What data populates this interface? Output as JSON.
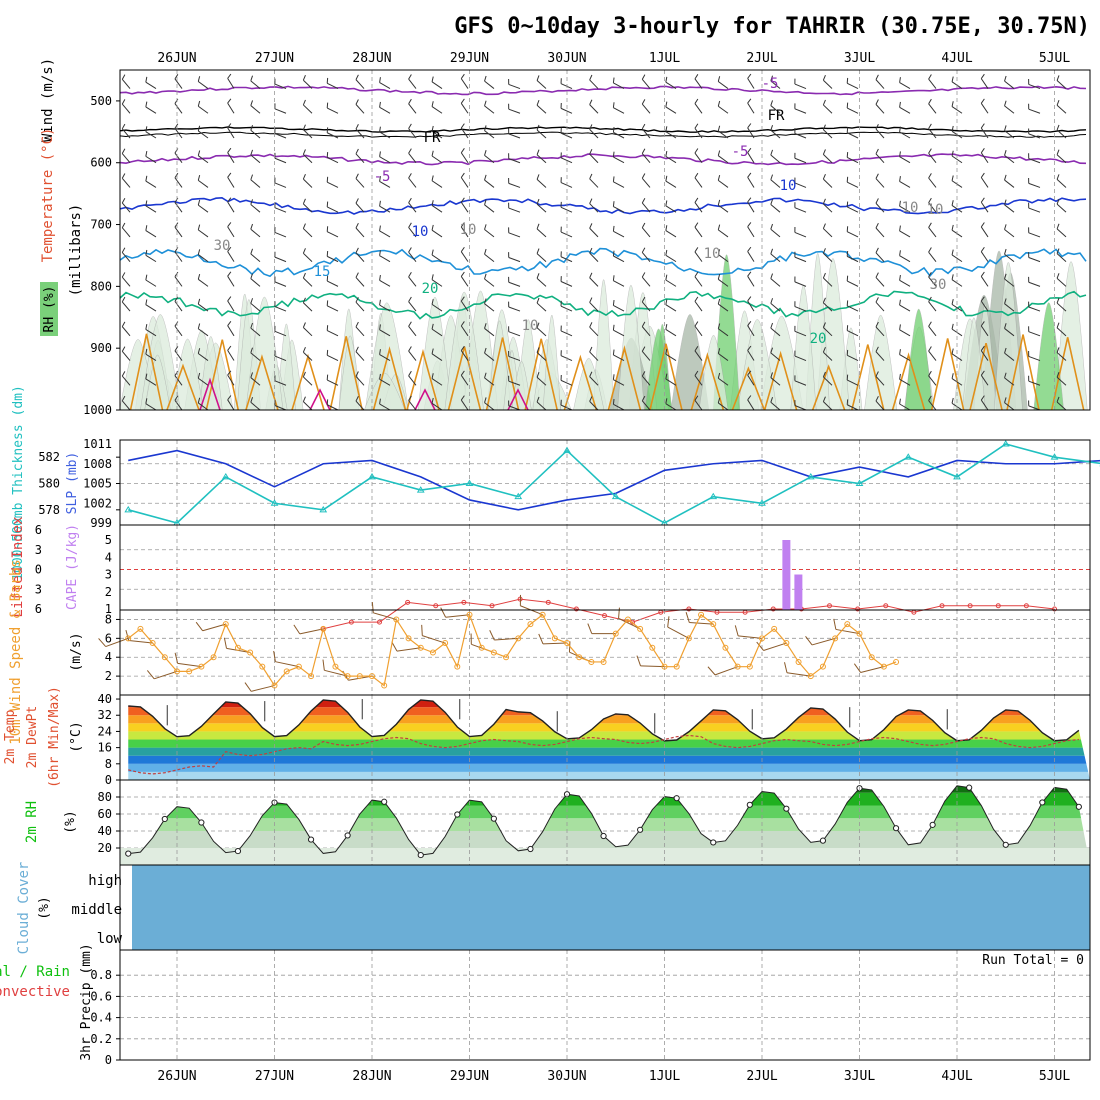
{
  "title": "GFS 0~10day 3-hourly for TAHRIR (30.75E, 30.75N)",
  "date_labels": [
    "26JUN",
    "27JUN",
    "28JUN",
    "29JUN",
    "30JUN",
    "1JUL",
    "2JUL",
    "3JUL",
    "4JUL",
    "5JUL"
  ],
  "upper_panel": {
    "label_wind": "Wind (m/s)",
    "label_temperature": "Temperature (°C)",
    "label_rh": "RH (%)",
    "label_pressure": "(millibars)",
    "pressure_ticks": [
      500,
      600,
      700,
      800,
      900,
      1000
    ],
    "contour_labels": [
      "-5",
      "FR",
      "FR",
      "-5",
      "-5",
      "10",
      "10",
      "15",
      "20",
      "20",
      "30",
      "30",
      "10",
      "10",
      "10",
      "10",
      "10"
    ]
  },
  "panel_labels": {
    "thickness": "1000~500mb Thickness (dm)",
    "slp": "SLP (mb)",
    "lifted_index": "Lifted Index",
    "cape": "CAPE (J/kg)",
    "wind10m": "10m Wind Speed & Barbs",
    "wind10m_unit": "(m/s)",
    "temp2m_a": "2m Temp",
    "temp2m_b": "2m DewPt",
    "temp2m_c": "(6hr Min/Max)",
    "temp2m_unit": "(°C)",
    "rh2m": "2m RH",
    "rh2m_unit": "(%)",
    "cloud": "Cloud Cover",
    "cloud_unit": "(%)",
    "cloud_levels": [
      "high",
      "middle",
      "low"
    ],
    "precip_a": "Total / Rain",
    "precip_b": "Convective",
    "precip_axis": "3hr Precip (mm)",
    "run_total": "Run Total = 0"
  },
  "colors": {
    "slp": "#1a37d0",
    "thickness": "#20c0c0",
    "lifted_index": "#e04040",
    "cape": "#c080f0",
    "wind": "#f0a030",
    "rh": "#10c010",
    "cloud": "#6baed6",
    "freezing": "#000000"
  },
  "chart_data": [
    {
      "type": "line",
      "panel": "SLP and 1000~500mb thickness",
      "x": [
        "25JUN 12Z",
        "26JUN",
        "26JUN 12Z",
        "27JUN",
        "27JUN 12Z",
        "28JUN",
        "28JUN 12Z",
        "29JUN",
        "29JUN 12Z",
        "30JUN",
        "30JUN 12Z",
        "1JUL",
        "1JUL 12Z",
        "2JUL",
        "2JUL 12Z",
        "3JUL",
        "3JUL 12Z",
        "4JUL",
        "4JUL 12Z",
        "5JUL",
        "5JUL 06Z"
      ],
      "series": [
        {
          "name": "SLP (mb)",
          "axis": "right",
          "values": [
            1008.5,
            1010.0,
            1008.0,
            1004.5,
            1008.0,
            1008.5,
            1006.0,
            1002.5,
            1001.0,
            1002.5,
            1003.5,
            1007.0,
            1008.0,
            1008.5,
            1006.0,
            1007.5,
            1006.0,
            1008.5,
            1008.0,
            1008.0,
            1008.5
          ]
        },
        {
          "name": "Thickness (dm)",
          "axis": "left",
          "values": [
            578.0,
            577.0,
            580.5,
            578.5,
            578.0,
            580.5,
            579.5,
            580.0,
            579.0,
            582.5,
            579.0,
            577.0,
            579.0,
            578.5,
            580.5,
            580.0,
            582.0,
            580.5,
            583.0,
            582.0,
            581.5
          ]
        }
      ],
      "ylim_left": [
        577,
        583
      ],
      "ylim_right": [
        999,
        1011
      ],
      "yticks_left": [
        578,
        580,
        582
      ],
      "yticks_right": [
        999,
        1002,
        1005,
        1008,
        1011
      ]
    },
    {
      "type": "line",
      "panel": "Lifted Index and CAPE",
      "series": [
        {
          "name": "Lifted Index",
          "start": "27JUN 12Z",
          "end": "5JUL",
          "values": [
            9.0,
            8.0,
            8.0,
            5.0,
            5.5,
            5.0,
            5.5,
            4.5,
            5.0,
            6.0,
            7.0,
            8.0,
            6.5,
            6.0,
            6.5,
            6.5,
            6.0,
            6.0,
            5.5,
            6.0,
            5.5,
            6.5,
            5.5,
            5.5,
            5.5,
            5.5,
            6.0
          ]
        },
        {
          "name": "CAPE",
          "type": "bar",
          "x": [
            "2JUL 06Z",
            "2JUL 09Z"
          ],
          "values": [
            5.0,
            3.0
          ]
        }
      ],
      "li_ticks": [
        -6,
        -3,
        0,
        3,
        6
      ],
      "cape_ticks": [
        1,
        2,
        3,
        4,
        5
      ],
      "reference_line": 0
    },
    {
      "type": "line",
      "panel": "10m Wind Speed",
      "x_start": "25JUN 12Z",
      "x_step_hours": 3,
      "values": [
        6.0,
        7.0,
        5.5,
        4.0,
        2.5,
        2.5,
        3.0,
        4.0,
        7.5,
        5.0,
        4.5,
        3.0,
        1.0,
        2.5,
        3.0,
        2.0,
        7.0,
        3.0,
        2.0,
        2.0,
        2.0,
        1.0,
        8.0,
        6.0,
        5.0,
        4.5,
        5.5,
        3.0,
        8.5,
        5.0,
        4.5,
        4.0,
        6.0,
        7.5,
        8.5,
        6.0,
        5.5,
        4.0,
        3.5,
        3.5,
        6.5,
        8.0,
        7.0,
        5.0,
        3.0,
        3.0,
        6.0,
        8.5,
        7.5,
        5.0,
        3.0,
        3.0,
        6.0,
        7.0,
        5.5,
        3.5,
        2.0,
        3.0,
        6.0,
        7.5,
        6.5,
        4.0,
        3.0,
        3.5
      ],
      "ylim": [
        0,
        9
      ],
      "yticks": [
        2,
        4,
        6,
        8
      ]
    },
    {
      "type": "area",
      "panel": "2m Temp and DewPt",
      "x_start": "25JUN 12Z",
      "series": [
        {
          "name": "2m Temp daily max",
          "values": [
            37,
            39,
            40,
            40,
            34,
            33,
            35,
            36,
            35
          ]
        },
        {
          "name": "2m Temp daily min",
          "values": [
            21,
            21,
            21,
            21,
            20,
            19,
            20,
            19,
            19
          ]
        },
        {
          "name": "2m DewPt",
          "values": [
            5,
            14,
            19,
            18,
            19,
            20,
            18,
            19,
            19,
            18
          ]
        }
      ],
      "ylim": [
        0,
        42
      ],
      "yticks": [
        0,
        8,
        16,
        24,
        32,
        40
      ]
    },
    {
      "type": "area",
      "panel": "2m RH",
      "series": [
        {
          "name": "2m RH daily max",
          "values": [
            70,
            75,
            78,
            78,
            85,
            82,
            88,
            92,
            95,
            93
          ]
        },
        {
          "name": "2m RH daily min",
          "values": [
            12,
            13,
            12,
            10,
            15,
            20,
            25,
            25,
            22,
            22
          ]
        }
      ],
      "ylim": [
        0,
        100
      ],
      "yticks": [
        20,
        40,
        60,
        80
      ]
    },
    {
      "type": "heatmap",
      "panel": "Cloud Cover",
      "levels": [
        "high",
        "middle",
        "low"
      ],
      "values": [
        0,
        0,
        0
      ]
    },
    {
      "type": "bar",
      "panel": "3hr Precip",
      "values": [
        0
      ],
      "ylim": [
        0,
        1.0
      ],
      "yticks": [
        0,
        0.2,
        0.4,
        0.6,
        0.8
      ]
    }
  ]
}
